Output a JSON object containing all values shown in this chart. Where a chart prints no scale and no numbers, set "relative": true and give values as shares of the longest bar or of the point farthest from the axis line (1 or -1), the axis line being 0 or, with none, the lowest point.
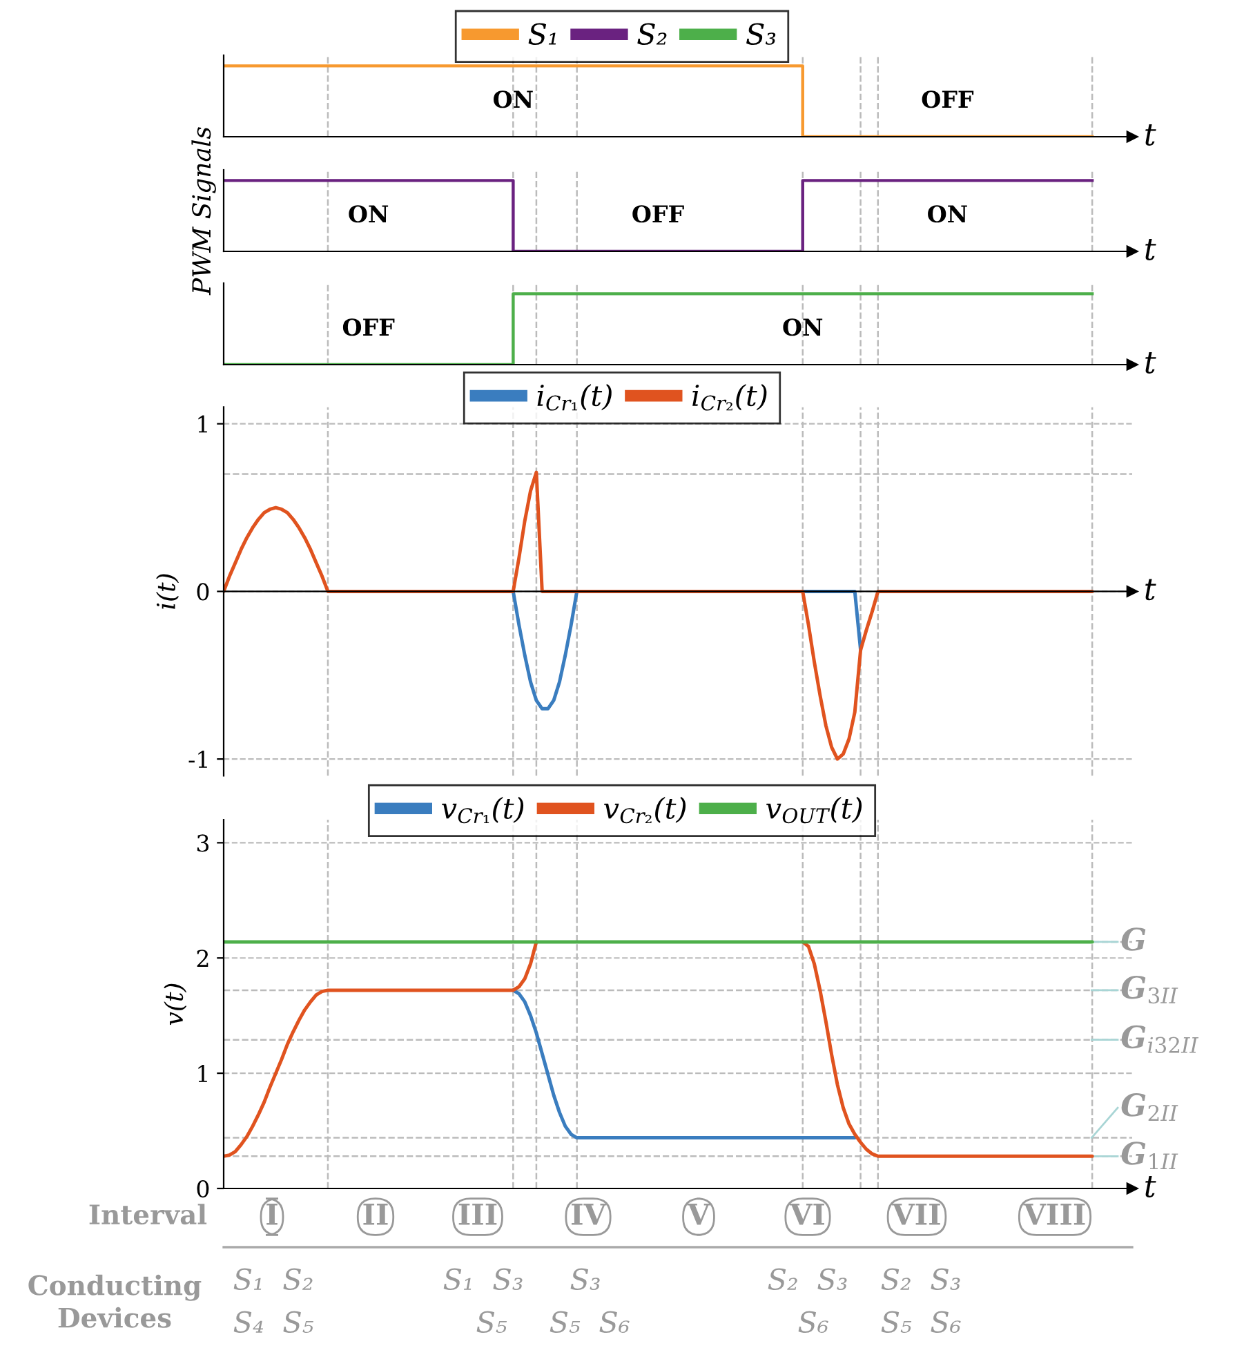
{
  "chart_data": [
    {
      "type": "step",
      "relative": true,
      "legend": "top",
      "xlabel": "t",
      "categories": [
        null,
        null,
        null,
        null,
        null,
        null,
        null,
        null,
        null,
        null,
        null,
        null,
        null,
        null,
        null,
        null,
        null,
        null,
        null,
        null,
        null,
        null,
        null,
        null,
        null,
        null,
        null,
        null,
        null,
        null,
        null,
        null,
        null,
        null,
        null,
        null,
        null,
        null,
        null,
        null,
        null,
        null,
        null,
        null,
        null,
        null,
        null,
        null,
        null,
        null,
        null,
        null,
        null,
        null,
        null,
        null,
        null,
        null,
        null,
        null,
        null,
        null,
        null,
        null,
        null,
        null,
        null,
        null,
        null,
        null,
        null,
        null,
        null,
        null,
        null,
        null,
        null,
        null,
        null,
        null,
        null,
        null,
        null,
        null,
        null,
        null,
        null,
        null,
        null,
        null,
        null,
        null,
        null,
        null,
        null,
        null,
        null,
        null,
        null,
        null,
        null,
        null,
        null,
        null,
        null,
        null,
        null,
        null,
        null,
        null,
        null,
        null,
        null,
        null,
        null,
        null,
        null,
        null,
        null,
        null,
        null,
        null,
        null,
        null,
        null,
        null,
        null,
        null,
        null,
        null,
        null,
        null,
        null,
        null,
        null,
        null,
        null,
        null,
        null,
        null,
        null,
        null,
        null,
        null,
        null,
        null,
        null,
        null,
        null,
        null,
        null
      ],
      "series": [
        {
          "name": "S₁",
          "color": "#f7992f",
          "values": [
            1,
            1,
            1,
            1,
            1,
            1,
            1,
            1,
            1,
            1,
            1,
            1,
            1,
            1,
            1,
            1,
            1,
            1,
            1,
            1,
            1,
            1,
            1,
            1,
            1,
            1,
            1,
            1,
            1,
            1,
            1,
            1,
            1,
            1,
            1,
            1,
            1,
            1,
            1,
            1,
            1,
            1,
            1,
            1,
            1,
            1,
            1,
            1,
            1,
            1,
            1,
            1,
            1,
            1,
            1,
            1,
            1,
            1,
            1,
            1,
            1,
            1,
            1,
            1,
            1,
            1,
            1,
            1,
            1,
            1,
            1,
            1,
            1,
            1,
            1,
            1,
            1,
            1,
            1,
            1,
            1,
            1,
            1,
            1,
            1,
            1,
            1,
            1,
            1,
            1,
            1,
            1,
            1,
            1,
            1,
            1,
            1,
            1,
            1,
            1,
            0,
            0,
            0,
            0,
            0,
            0,
            0,
            0,
            0,
            0,
            0,
            0,
            0,
            0,
            0,
            0,
            0,
            0,
            0,
            0,
            0,
            0,
            0,
            0,
            0,
            0,
            0,
            0,
            0,
            0,
            0,
            0,
            0,
            0,
            0,
            0,
            0,
            0,
            0,
            0,
            0,
            0,
            0,
            0,
            0,
            0,
            0,
            0,
            0,
            0,
            0
          ]
        }
      ],
      "annotations": [
        "ON",
        "OFF"
      ]
    },
    {
      "type": "step",
      "relative": true,
      "xlabel": "t",
      "ylabel": "PWM Signals",
      "categories": [
        null,
        null,
        null,
        null,
        null,
        null,
        null,
        null,
        null,
        null,
        null,
        null,
        null,
        null,
        null,
        null,
        null,
        null,
        null,
        null,
        null,
        null,
        null,
        null,
        null,
        null,
        null,
        null,
        null,
        null,
        null,
        null,
        null,
        null,
        null,
        null,
        null,
        null,
        null,
        null,
        null,
        null,
        null,
        null,
        null,
        null,
        null,
        null,
        null,
        null,
        null,
        null,
        null,
        null,
        null,
        null,
        null,
        null,
        null,
        null,
        null,
        null,
        null,
        null,
        null,
        null,
        null,
        null,
        null,
        null,
        null,
        null,
        null,
        null,
        null,
        null,
        null,
        null,
        null,
        null,
        null,
        null,
        null,
        null,
        null,
        null,
        null,
        null,
        null,
        null,
        null,
        null,
        null,
        null,
        null,
        null,
        null,
        null,
        null,
        null,
        null,
        null,
        null,
        null,
        null,
        null,
        null,
        null,
        null,
        null,
        null,
        null,
        null,
        null,
        null,
        null,
        null,
        null,
        null,
        null,
        null,
        null,
        null,
        null,
        null,
        null,
        null,
        null,
        null,
        null,
        null,
        null,
        null,
        null,
        null,
        null,
        null,
        null,
        null,
        null,
        null,
        null,
        null,
        null,
        null,
        null,
        null,
        null,
        null,
        null,
        null
      ],
      "series": [
        {
          "name": "S₂",
          "color": "#6a2280",
          "values": [
            1,
            1,
            1,
            1,
            1,
            1,
            1,
            1,
            1,
            1,
            1,
            1,
            1,
            1,
            1,
            1,
            1,
            1,
            1,
            1,
            1,
            1,
            1,
            1,
            1,
            1,
            1,
            1,
            1,
            1,
            1,
            1,
            1,
            1,
            1,
            1,
            1,
            1,
            1,
            1,
            1,
            1,
            1,
            1,
            1,
            1,
            1,
            1,
            1,
            1,
            0,
            0,
            0,
            0,
            0,
            0,
            0,
            0,
            0,
            0,
            0,
            0,
            0,
            0,
            0,
            0,
            0,
            0,
            0,
            0,
            0,
            0,
            0,
            0,
            0,
            0,
            0,
            0,
            0,
            0,
            0,
            0,
            0,
            0,
            0,
            0,
            0,
            0,
            0,
            0,
            0,
            0,
            0,
            0,
            0,
            0,
            0,
            0,
            0,
            0,
            1,
            1,
            1,
            1,
            1,
            1,
            1,
            1,
            1,
            1,
            1,
            1,
            1,
            1,
            1,
            1,
            1,
            1,
            1,
            1,
            1,
            1,
            1,
            1,
            1,
            1,
            1,
            1,
            1,
            1,
            1,
            1,
            1,
            1,
            1,
            1,
            1,
            1,
            1,
            1,
            1,
            1,
            1,
            1,
            1,
            1,
            1,
            1,
            1,
            1,
            1
          ]
        }
      ],
      "annotations": [
        "ON",
        "OFF",
        "ON"
      ]
    },
    {
      "type": "step",
      "relative": true,
      "xlabel": "t",
      "categories": [
        null,
        null,
        null,
        null,
        null,
        null,
        null,
        null,
        null,
        null,
        null,
        null,
        null,
        null,
        null,
        null,
        null,
        null,
        null,
        null,
        null,
        null,
        null,
        null,
        null,
        null,
        null,
        null,
        null,
        null,
        null,
        null,
        null,
        null,
        null,
        null,
        null,
        null,
        null,
        null,
        null,
        null,
        null,
        null,
        null,
        null,
        null,
        null,
        null,
        null,
        null,
        null,
        null,
        null,
        null,
        null,
        null,
        null,
        null,
        null,
        null,
        null,
        null,
        null,
        null,
        null,
        null,
        null,
        null,
        null,
        null,
        null,
        null,
        null,
        null,
        null,
        null,
        null,
        null,
        null,
        null,
        null,
        null,
        null,
        null,
        null,
        null,
        null,
        null,
        null,
        null,
        null,
        null,
        null,
        null,
        null,
        null,
        null,
        null,
        null,
        null,
        null,
        null,
        null,
        null,
        null,
        null,
        null,
        null,
        null,
        null,
        null,
        null,
        null,
        null,
        null,
        null,
        null,
        null,
        null,
        null,
        null,
        null,
        null,
        null,
        null,
        null,
        null,
        null,
        null,
        null,
        null,
        null,
        null,
        null,
        null,
        null,
        null,
        null,
        null,
        null,
        null,
        null,
        null,
        null,
        null,
        null,
        null,
        null,
        null,
        null
      ],
      "series": [
        {
          "name": "S₃",
          "color": "#4daf4a",
          "values": [
            0,
            0,
            0,
            0,
            0,
            0,
            0,
            0,
            0,
            0,
            0,
            0,
            0,
            0,
            0,
            0,
            0,
            0,
            0,
            0,
            0,
            0,
            0,
            0,
            0,
            0,
            0,
            0,
            0,
            0,
            0,
            0,
            0,
            0,
            0,
            0,
            0,
            0,
            0,
            0,
            0,
            0,
            0,
            0,
            0,
            0,
            0,
            0,
            0,
            0,
            1,
            1,
            1,
            1,
            1,
            1,
            1,
            1,
            1,
            1,
            1,
            1,
            1,
            1,
            1,
            1,
            1,
            1,
            1,
            1,
            1,
            1,
            1,
            1,
            1,
            1,
            1,
            1,
            1,
            1,
            1,
            1,
            1,
            1,
            1,
            1,
            1,
            1,
            1,
            1,
            1,
            1,
            1,
            1,
            1,
            1,
            1,
            1,
            1,
            1,
            1,
            1,
            1,
            1,
            1,
            1,
            1,
            1,
            1,
            1,
            1,
            1,
            1,
            1,
            1,
            1,
            1,
            1,
            1,
            1,
            1,
            1,
            1,
            1,
            1,
            1,
            1,
            1,
            1,
            1,
            1,
            1,
            1,
            1,
            1,
            1,
            1,
            1,
            1,
            1,
            1,
            1,
            1,
            1,
            1,
            1,
            1,
            1,
            1,
            1,
            1
          ]
        }
      ],
      "annotations": [
        "OFF",
        "ON"
      ]
    },
    {
      "type": "line",
      "legend": "top",
      "ylim": [
        -1.1,
        1.1
      ],
      "yticks": [
        -1,
        0,
        1
      ],
      "xlabel": "t",
      "ylabel": "i(t)",
      "grid": "y",
      "categories": [
        null,
        null,
        null,
        null,
        null,
        null,
        null,
        null,
        null,
        null,
        null,
        null,
        null,
        null,
        null,
        null,
        null,
        null,
        null,
        null,
        null,
        null,
        null,
        null,
        null,
        null,
        null,
        null,
        null,
        null,
        null,
        null,
        null,
        null,
        null,
        null,
        null,
        null,
        null,
        null,
        null,
        null,
        null,
        null,
        null,
        null,
        null,
        null,
        null,
        null,
        null,
        null,
        null,
        null,
        null,
        null,
        null,
        null,
        null,
        null,
        null,
        null,
        null,
        null,
        null,
        null,
        null,
        null,
        null,
        null,
        null,
        null,
        null,
        null,
        null,
        null,
        null,
        null,
        null,
        null,
        null,
        null,
        null,
        null,
        null,
        null,
        null,
        null,
        null,
        null,
        null,
        null,
        null,
        null,
        null,
        null,
        null,
        null,
        null,
        null,
        null,
        null,
        null,
        null,
        null,
        null,
        null,
        null,
        null,
        null,
        null,
        null,
        null,
        null,
        null,
        null,
        null,
        null,
        null,
        null,
        null,
        null,
        null,
        null,
        null,
        null,
        null,
        null,
        null,
        null,
        null,
        null,
        null,
        null,
        null,
        null,
        null,
        null,
        null,
        null,
        null,
        null,
        null,
        null,
        null,
        null,
        null,
        null,
        null,
        null,
        null
      ],
      "series": [
        {
          "name": "i$_{Cr₁}$(t)",
          "color": "#3a7dbf",
          "values": [
            null,
            null,
            null,
            null,
            null,
            null,
            null,
            null,
            null,
            null,
            null,
            null,
            null,
            null,
            null,
            null,
            null,
            null,
            null,
            null,
            null,
            null,
            null,
            null,
            null,
            null,
            null,
            null,
            null,
            null,
            null,
            null,
            null,
            null,
            null,
            null,
            null,
            null,
            null,
            null,
            null,
            null,
            null,
            null,
            null,
            null,
            null,
            null,
            null,
            null,
            0,
            -0.2,
            -0.38,
            -0.54,
            -0.65,
            -0.7,
            -0.7,
            -0.65,
            -0.54,
            -0.38,
            -0.2,
            0,
            null,
            null,
            null,
            null,
            null,
            null,
            null,
            null,
            null,
            null,
            null,
            null,
            null,
            null,
            null,
            null,
            null,
            null,
            null,
            null,
            null,
            null,
            null,
            null,
            null,
            null,
            null,
            null,
            null,
            null,
            null,
            null,
            null,
            null,
            null,
            null,
            null,
            null,
            0,
            0,
            0,
            0,
            0,
            0,
            0,
            0,
            0,
            0,
            -0.35,
            null,
            null,
            null,
            null,
            null,
            null,
            null,
            null,
            null,
            null,
            null,
            null,
            null,
            null,
            null,
            null,
            null,
            null,
            null,
            null,
            null,
            null,
            null,
            null,
            null,
            null,
            null,
            null,
            null,
            null,
            null,
            null,
            null,
            null,
            null,
            null,
            null,
            null,
            null,
            null
          ]
        },
        {
          "name": "i$_{Cr₂}$(t)",
          "color": "#e0531f",
          "values": [
            0,
            0.09,
            0.17,
            0.25,
            0.32,
            0.38,
            0.43,
            0.47,
            0.49,
            0.5,
            0.49,
            0.47,
            0.43,
            0.38,
            0.32,
            0.25,
            0.17,
            0.09,
            0,
            0,
            0,
            0,
            0,
            0,
            0,
            0,
            0,
            0,
            0,
            0,
            0,
            0,
            0,
            0,
            0,
            0,
            0,
            0,
            0,
            0,
            0,
            0,
            0,
            0,
            0,
            0,
            0,
            0,
            0,
            0,
            0,
            0.2,
            0.42,
            0.6,
            0.71,
            0,
            0,
            0,
            0,
            0,
            0,
            0,
            0,
            0,
            0,
            0,
            0,
            0,
            0,
            0,
            0,
            0,
            0,
            0,
            0,
            0,
            0,
            0,
            0,
            0,
            0,
            0,
            0,
            0,
            0,
            0,
            0,
            0,
            0,
            0,
            0,
            0,
            0,
            0,
            0,
            0,
            0,
            0,
            0,
            0,
            0,
            -0.2,
            -0.42,
            -0.62,
            -0.8,
            -0.93,
            -1.0,
            -0.97,
            -0.88,
            -0.72,
            -0.35,
            -0.23,
            -0.12,
            0,
            0,
            0,
            0,
            0,
            0,
            0,
            0,
            0,
            0,
            0,
            0,
            0,
            0,
            0,
            0,
            0,
            0,
            0,
            0,
            0,
            0,
            0,
            0,
            0,
            0,
            0,
            0,
            0,
            0,
            0,
            0,
            0,
            0,
            0,
            0,
            0,
            0
          ]
        }
      ],
      "ref_lines": [
        {
          "axis": "y",
          "value": 0.7
        }
      ]
    },
    {
      "type": "line",
      "legend": "top",
      "ylim": [
        0,
        3.2
      ],
      "yticks": [
        0,
        1,
        2,
        3
      ],
      "xlabel": "t",
      "ylabel": "v(t)",
      "grid": "y",
      "categories": [
        null,
        null,
        null,
        null,
        null,
        null,
        null,
        null,
        null,
        null,
        null,
        null,
        null,
        null,
        null,
        null,
        null,
        null,
        null,
        null,
        null,
        null,
        null,
        null,
        null,
        null,
        null,
        null,
        null,
        null,
        null,
        null,
        null,
        null,
        null,
        null,
        null,
        null,
        null,
        null,
        null,
        null,
        null,
        null,
        null,
        null,
        null,
        null,
        null,
        null,
        null,
        null,
        null,
        null,
        null,
        null,
        null,
        null,
        null,
        null,
        null,
        null,
        null,
        null,
        null,
        null,
        null,
        null,
        null,
        null,
        null,
        null,
        null,
        null,
        null,
        null,
        null,
        null,
        null,
        null,
        null,
        null,
        null,
        null,
        null,
        null,
        null,
        null,
        null,
        null,
        null,
        null,
        null,
        null,
        null,
        null,
        null,
        null,
        null,
        null,
        null,
        null,
        null,
        null,
        null,
        null,
        null,
        null,
        null,
        null,
        null,
        null,
        null,
        null,
        null,
        null,
        null,
        null,
        null,
        null,
        null,
        null,
        null,
        null,
        null,
        null,
        null,
        null,
        null,
        null,
        null,
        null,
        null,
        null,
        null,
        null,
        null,
        null,
        null,
        null,
        null,
        null,
        null,
        null,
        null,
        null,
        null,
        null,
        null,
        null,
        null
      ],
      "series": [
        {
          "name": "v$_{Cr₁}$(t)",
          "color": "#3a7dbf",
          "values": [
            null,
            null,
            null,
            null,
            null,
            null,
            null,
            null,
            null,
            null,
            null,
            null,
            null,
            null,
            null,
            null,
            null,
            null,
            null,
            null,
            null,
            null,
            null,
            null,
            null,
            null,
            null,
            null,
            null,
            null,
            null,
            null,
            null,
            null,
            null,
            null,
            null,
            null,
            null,
            null,
            null,
            null,
            null,
            null,
            null,
            null,
            null,
            null,
            null,
            null,
            1.72,
            1.69,
            1.62,
            1.5,
            1.35,
            1.17,
            0.99,
            0.81,
            0.66,
            0.54,
            0.47,
            0.44,
            0.44,
            0.44,
            0.44,
            0.44,
            0.44,
            0.44,
            0.44,
            0.44,
            0.44,
            0.44,
            0.44,
            0.44,
            0.44,
            0.44,
            0.44,
            0.44,
            0.44,
            0.44,
            0.44,
            0.44,
            0.44,
            0.44,
            0.44,
            0.44,
            0.44,
            0.44,
            0.44,
            0.44,
            0.44,
            0.44,
            0.44,
            0.44,
            0.44,
            0.44,
            0.44,
            0.44,
            0.44,
            0.44,
            0.44,
            0.44,
            0.44,
            0.44,
            0.44,
            0.44,
            0.44,
            0.44,
            0.44,
            0.44,
            null,
            null,
            null,
            null,
            null,
            null,
            null,
            null,
            null,
            null,
            null,
            null,
            null,
            null,
            null,
            null,
            null,
            null,
            null,
            null,
            null,
            null,
            null,
            null,
            null,
            null,
            null,
            null,
            null,
            null,
            null,
            null,
            null,
            null,
            null,
            null,
            null,
            null,
            null,
            null,
            null
          ]
        },
        {
          "name": "v$_{Cr₂}$(t)",
          "color": "#e0531f",
          "values": [
            0.28,
            0.29,
            0.32,
            0.38,
            0.45,
            0.54,
            0.64,
            0.75,
            0.88,
            1.0,
            1.12,
            1.25,
            1.36,
            1.46,
            1.55,
            1.62,
            1.68,
            1.71,
            1.72,
            1.72,
            1.72,
            1.72,
            1.72,
            1.72,
            1.72,
            1.72,
            1.72,
            1.72,
            1.72,
            1.72,
            1.72,
            1.72,
            1.72,
            1.72,
            1.72,
            1.72,
            1.72,
            1.72,
            1.72,
            1.72,
            1.72,
            1.72,
            1.72,
            1.72,
            1.72,
            1.72,
            1.72,
            1.72,
            1.72,
            1.72,
            1.72,
            1.75,
            1.82,
            1.95,
            2.14,
            null,
            null,
            null,
            null,
            null,
            null,
            null,
            null,
            null,
            null,
            null,
            null,
            null,
            null,
            null,
            null,
            null,
            null,
            null,
            null,
            null,
            null,
            null,
            null,
            null,
            null,
            null,
            null,
            null,
            null,
            null,
            null,
            null,
            null,
            null,
            null,
            null,
            null,
            null,
            null,
            null,
            null,
            null,
            null,
            null,
            2.14,
            2.1,
            1.95,
            1.72,
            1.45,
            1.16,
            0.9,
            0.7,
            0.56,
            0.47,
            0.4,
            0.34,
            0.3,
            0.28,
            0.28,
            0.28,
            0.28,
            0.28,
            0.28,
            0.28,
            0.28,
            0.28,
            0.28,
            0.28,
            0.28,
            0.28,
            0.28,
            0.28,
            0.28,
            0.28,
            0.28,
            0.28,
            0.28,
            0.28,
            0.28,
            0.28,
            0.28,
            0.28,
            0.28,
            0.28,
            0.28,
            0.28,
            0.28,
            0.28,
            0.28,
            0.28,
            0.28,
            0.28,
            0.28,
            0.28,
            0.28
          ]
        },
        {
          "name": "v$_{OUT}$(t)",
          "color": "#4daf4a",
          "values": [
            2.14,
            2.14,
            2.14,
            2.14,
            2.14,
            2.14,
            2.14,
            2.14,
            2.14,
            2.14,
            2.14,
            2.14,
            2.14,
            2.14,
            2.14,
            2.14,
            2.14,
            2.14,
            2.14,
            2.14,
            2.14,
            2.14,
            2.14,
            2.14,
            2.14,
            2.14,
            2.14,
            2.14,
            2.14,
            2.14,
            2.14,
            2.14,
            2.14,
            2.14,
            2.14,
            2.14,
            2.14,
            2.14,
            2.14,
            2.14,
            2.14,
            2.14,
            2.14,
            2.14,
            2.14,
            2.14,
            2.14,
            2.14,
            2.14,
            2.14,
            2.14,
            2.14,
            2.14,
            2.14,
            2.14,
            2.14,
            2.14,
            2.14,
            2.14,
            2.14,
            2.14,
            2.14,
            2.14,
            2.14,
            2.14,
            2.14,
            2.14,
            2.14,
            2.14,
            2.14,
            2.14,
            2.14,
            2.14,
            2.14,
            2.14,
            2.14,
            2.14,
            2.14,
            2.14,
            2.14,
            2.14,
            2.14,
            2.14,
            2.14,
            2.14,
            2.14,
            2.14,
            2.14,
            2.14,
            2.14,
            2.14,
            2.14,
            2.14,
            2.14,
            2.14,
            2.14,
            2.14,
            2.14,
            2.14,
            2.14,
            2.14,
            2.14,
            2.14,
            2.14,
            2.14,
            2.14,
            2.14,
            2.14,
            2.14,
            2.14,
            2.14,
            2.14,
            2.14,
            2.14,
            2.14,
            2.14,
            2.14,
            2.14,
            2.14,
            2.14,
            2.14,
            2.14,
            2.14,
            2.14,
            2.14,
            2.14,
            2.14,
            2.14,
            2.14,
            2.14,
            2.14,
            2.14,
            2.14,
            2.14,
            2.14,
            2.14,
            2.14,
            2.14,
            2.14,
            2.14,
            2.14,
            2.14,
            2.14,
            2.14,
            2.14,
            2.14,
            2.14,
            2.14,
            2.14,
            2.14,
            2.14
          ]
        }
      ],
      "ref_lines": [
        {
          "axis": "y",
          "value": 2.14,
          "label": "G"
        },
        {
          "axis": "y",
          "value": 1.72,
          "label": "G$_{3II}$"
        },
        {
          "axis": "y",
          "value": 1.29,
          "label": "G$_{i32II}$"
        },
        {
          "axis": "y",
          "value": 0.44,
          "label": "G$_{2II}$"
        },
        {
          "axis": "y",
          "value": 0.28,
          "label": "G$_{1II}$"
        }
      ]
    },
    {
      "type": "other",
      "annotations": [
        "Interval",
        "I",
        "II",
        "III",
        "IV",
        "V",
        "VI",
        "VII",
        "VIII",
        "Conducting\nDevices",
        "S₁  S₂",
        "S₄  S₅",
        "S₁  S₃",
        "S₅",
        "S₃",
        "S₅  S₆",
        "S₂  S₃",
        "S₆",
        "S₂  S₃",
        "S₅  S₆"
      ]
    }
  ]
}
